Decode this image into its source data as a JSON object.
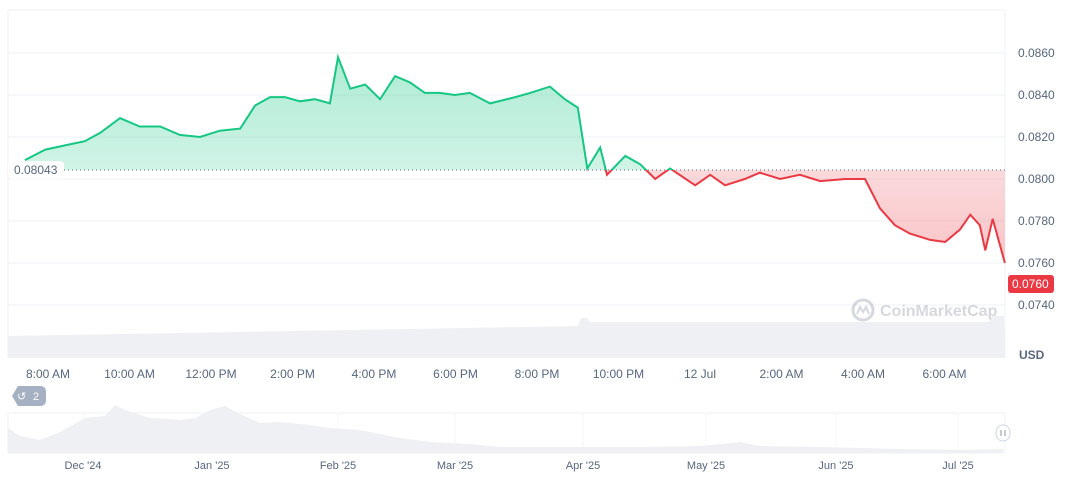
{
  "chart_data": {
    "type": "area",
    "currency_label": "USD",
    "baseline": {
      "value": 0.08043,
      "label": "0.08043"
    },
    "current_price_label": "0.0760",
    "ylim": [
      0.073,
      0.0868
    ],
    "y_ticks": [
      "0.0860",
      "0.0840",
      "0.0820",
      "0.0800",
      "0.0780",
      "0.0760",
      "0.0740"
    ],
    "x_ticks": [
      "8:00 AM",
      "10:00 AM",
      "12:00 PM",
      "2:00 PM",
      "4:00 PM",
      "6:00 PM",
      "8:00 PM",
      "10:00 PM",
      "12 Jul",
      "2:00 AM",
      "4:00 AM",
      "6:00 AM"
    ],
    "colors": {
      "up": "#16c784",
      "down": "#ea3943",
      "grid": "#eff2f5"
    },
    "series": {
      "x": [
        "07:26",
        "07:56",
        "08:25",
        "08:54",
        "09:17",
        "09:46",
        "10:15",
        "10:45",
        "11:14",
        "11:44",
        "12:13",
        "12:43",
        "13:05",
        "13:27",
        "13:49",
        "14:11",
        "14:33",
        "14:55",
        "15:07",
        "15:25",
        "15:47",
        "16:09",
        "16:31",
        "16:53",
        "17:15",
        "17:37",
        "17:59",
        "18:21",
        "18:51",
        "19:28",
        "19:50",
        "20:19",
        "20:41",
        "21:00",
        "21:14",
        "21:33",
        "21:43",
        "22:10",
        "22:32",
        "22:54",
        "23:16",
        "23:53",
        "00:15",
        "00:37",
        "01:06",
        "01:28",
        "01:58",
        "02:27",
        "02:57",
        "03:34",
        "04:03",
        "04:25",
        "04:47",
        "05:09",
        "05:39",
        "06:01",
        "06:23",
        "06:38",
        "06:52",
        "07:00",
        "07:11",
        "07:29"
      ],
      "y": [
        0.0809,
        0.0814,
        0.0816,
        0.0818,
        0.0822,
        0.0829,
        0.0825,
        0.0825,
        0.0821,
        0.082,
        0.0823,
        0.0824,
        0.0835,
        0.0839,
        0.0839,
        0.0837,
        0.0838,
        0.0836,
        0.0858,
        0.0843,
        0.0845,
        0.0838,
        0.0849,
        0.0846,
        0.0841,
        0.0841,
        0.084,
        0.0841,
        0.0836,
        0.0839,
        0.0841,
        0.0844,
        0.0838,
        0.0834,
        0.0805,
        0.0815,
        0.0802,
        0.0811,
        0.0807,
        0.08,
        0.0805,
        0.0797,
        0.0802,
        0.0797,
        0.08,
        0.0803,
        0.08,
        0.0802,
        0.0799,
        0.08,
        0.08,
        0.0786,
        0.0778,
        0.0774,
        0.0771,
        0.077,
        0.0776,
        0.0783,
        0.0778,
        0.0766,
        0.0781,
        0.076
      ]
    }
  },
  "navigator": {
    "x_ticks": [
      "Dec '24",
      "Jan '25",
      "Feb '25",
      "Mar '25",
      "Apr '25",
      "May '25",
      "Jun '25",
      "Jul '25"
    ]
  },
  "watermark": "CoinMarketCap",
  "history_badge": {
    "icon": "history-icon",
    "count": "2"
  }
}
